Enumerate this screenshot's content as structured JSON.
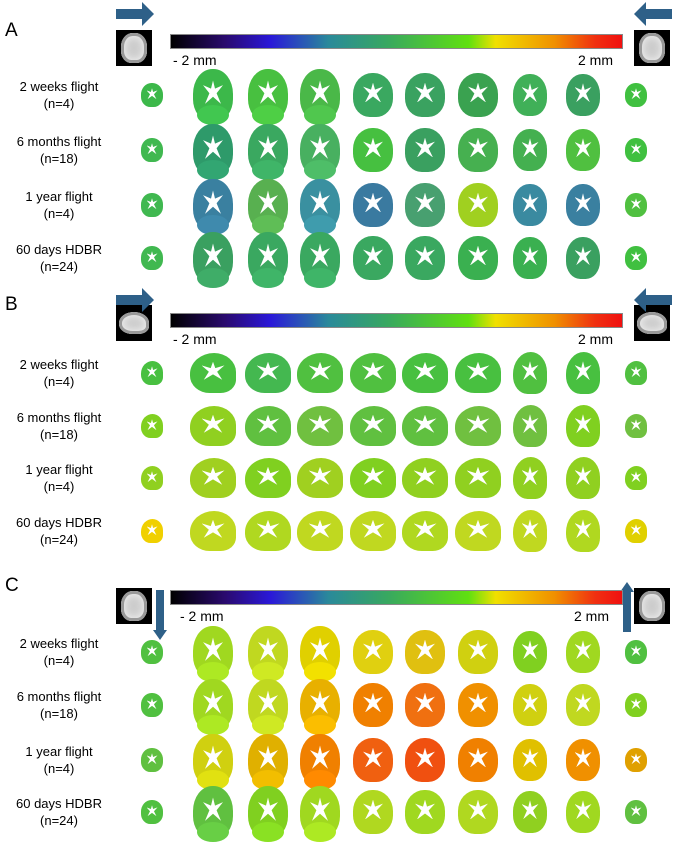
{
  "colorbar": {
    "min_label": "- 2 mm",
    "max_label": "2 mm"
  },
  "panels": [
    {
      "label": "A",
      "view": "coronal",
      "arrows": "horizontal",
      "rows": [
        {
          "label": "2 weeks flight",
          "n": "(n=4)",
          "colors": [
            "#3cb84a",
            "#3cb84a",
            "#48c040",
            "#4ab848",
            "#3aa860",
            "#3aa260",
            "#3aa250",
            "#40b058",
            "#3aa060",
            "#40c040"
          ]
        },
        {
          "label": "6 months flight",
          "n": "(n=18)",
          "colors": [
            "#40b850",
            "#2e9a6a",
            "#3aa860",
            "#48b060",
            "#46c040",
            "#3aa060",
            "#46b050",
            "#44b050",
            "#50c040",
            "#40c040"
          ]
        },
        {
          "label": "1 year flight",
          "n": "(n=4)",
          "colors": [
            "#40b850",
            "#3a80a0",
            "#58b050",
            "#3a90a0",
            "#3a7aa0",
            "#48a070",
            "#a0d020",
            "#3a8aa0",
            "#3a80a0",
            "#50c040"
          ]
        },
        {
          "label": "60 days HDBR",
          "n": "(n=24)",
          "colors": [
            "#40b850",
            "#3aa060",
            "#3aa860",
            "#3aa860",
            "#3aa860",
            "#3aa860",
            "#3ab050",
            "#3ab050",
            "#3aa060",
            "#40c040"
          ]
        }
      ]
    },
    {
      "label": "B",
      "view": "sagittal",
      "arrows": "horizontal",
      "rows": [
        {
          "label": "2 weeks flight",
          "n": "(n=4)",
          "colors": [
            "#48c040",
            "#48c040",
            "#44b850",
            "#50c040",
            "#50c040",
            "#48c040",
            "#48c040",
            "#50c040",
            "#48c040",
            "#50c040"
          ]
        },
        {
          "label": "6 months flight",
          "n": "(n=18)",
          "colors": [
            "#80d020",
            "#90d020",
            "#60c040",
            "#70c040",
            "#60c040",
            "#60c040",
            "#70c040",
            "#70c040",
            "#80d020",
            "#70c040"
          ]
        },
        {
          "label": "1 year flight",
          "n": "(n=4)",
          "colors": [
            "#90d020",
            "#a0d020",
            "#80d020",
            "#a0d020",
            "#80d020",
            "#90d020",
            "#90d020",
            "#90d020",
            "#90d020",
            "#80d020"
          ]
        },
        {
          "label": "60 days HDBR",
          "n": "(n=24)",
          "colors": [
            "#f0d000",
            "#c0d820",
            "#b0d820",
            "#c0d820",
            "#c0d820",
            "#b0d820",
            "#c0d820",
            "#c0d820",
            "#b0d820",
            "#e0d000"
          ]
        }
      ]
    },
    {
      "label": "C",
      "view": "coronal",
      "arrows": "vertical",
      "rows": [
        {
          "label": "2 weeks flight",
          "n": "(n=4)",
          "colors": [
            "#50c040",
            "#a0d820",
            "#c0d820",
            "#e0d000",
            "#e0d010",
            "#e0c010",
            "#d0d010",
            "#80d020",
            "#a0d820",
            "#50c040"
          ]
        },
        {
          "label": "6 months flight",
          "n": "(n=18)",
          "colors": [
            "#50c040",
            "#a0d820",
            "#c0d820",
            "#e8b000",
            "#f08000",
            "#f07010",
            "#f09000",
            "#d0d010",
            "#c0d820",
            "#80d020"
          ]
        },
        {
          "label": "1 year flight",
          "n": "(n=4)",
          "colors": [
            "#60c040",
            "#d0d010",
            "#e0b000",
            "#f08000",
            "#f06010",
            "#f05010",
            "#f08000",
            "#e0c000",
            "#f09000",
            "#e0a000"
          ]
        },
        {
          "label": "60 days HDBR",
          "n": "(n=24)",
          "colors": [
            "#50c040",
            "#60c040",
            "#80d020",
            "#a0d820",
            "#b0d820",
            "#a0d820",
            "#b0d820",
            "#90d020",
            "#a0d820",
            "#60c040"
          ]
        }
      ]
    }
  ]
}
